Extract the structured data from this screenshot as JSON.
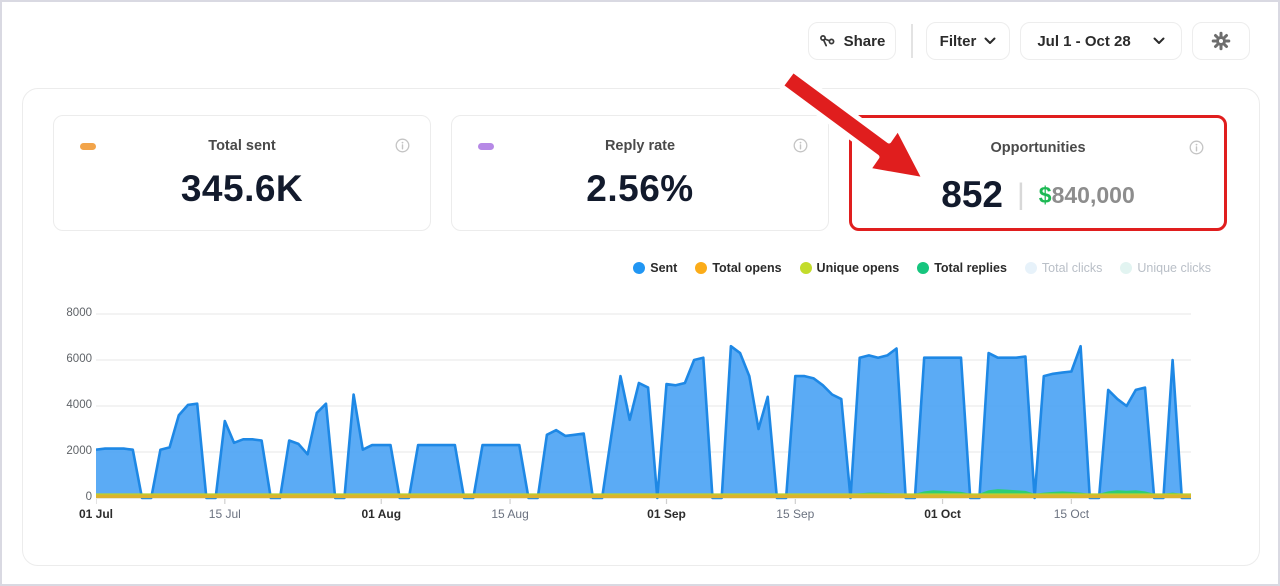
{
  "toolbar": {
    "share_label": "Share",
    "filter_label": "Filter",
    "date_range": "Jul 1 - Oct 28"
  },
  "stats": [
    {
      "title": "Total sent",
      "value": "345.6K",
      "dot_color": "#f2a44a"
    },
    {
      "title": "Reply rate",
      "value": "2.56%",
      "dot_color": "#b689e6"
    },
    {
      "title": "Opportunities",
      "count": "852",
      "separator": "|",
      "currency_symbol": "$",
      "amount": "840,000",
      "highlighted": true,
      "highlight_color": "#e01e1e"
    }
  ],
  "legend": [
    {
      "label": "Sent",
      "color": "#2196f3",
      "enabled": true
    },
    {
      "label": "Total opens",
      "color": "#fbac19",
      "enabled": true
    },
    {
      "label": "Unique opens",
      "color": "#c3dc2b",
      "enabled": true
    },
    {
      "label": "Total replies",
      "color": "#16c57e",
      "enabled": true
    },
    {
      "label": "Total clicks",
      "color": "#e7f2fa",
      "enabled": false
    },
    {
      "label": "Unique clicks",
      "color": "#e2f4f1",
      "enabled": false
    }
  ],
  "chart_data": {
    "type": "area",
    "ylim": [
      0,
      8000
    ],
    "y_ticks": [
      0,
      2000,
      4000,
      6000,
      8000
    ],
    "x_ticks": [
      {
        "label": "01 Jul",
        "index": 0,
        "bold": true
      },
      {
        "label": "15 Jul",
        "index": 14,
        "bold": false
      },
      {
        "label": "01 Aug",
        "index": 31,
        "bold": true
      },
      {
        "label": "15 Aug",
        "index": 45,
        "bold": false
      },
      {
        "label": "01 Sep",
        "index": 62,
        "bold": true
      },
      {
        "label": "15 Sep",
        "index": 76,
        "bold": false
      },
      {
        "label": "01 Oct",
        "index": 92,
        "bold": true
      },
      {
        "label": "15 Oct",
        "index": 106,
        "bold": false
      }
    ],
    "series": [
      {
        "name": "Sent",
        "fill": "#4da4f4",
        "stroke": "#1e88e5",
        "values": [
          2100,
          2150,
          2150,
          2150,
          2100,
          0,
          0,
          2100,
          2200,
          3600,
          4050,
          4100,
          0,
          0,
          3350,
          2400,
          2550,
          2550,
          2500,
          0,
          0,
          2500,
          2350,
          1900,
          3700,
          4100,
          0,
          0,
          4500,
          2100,
          2300,
          2300,
          2300,
          0,
          0,
          2300,
          2300,
          2300,
          2300,
          2300,
          0,
          0,
          2300,
          2300,
          2300,
          2300,
          2300,
          0,
          0,
          2750,
          2950,
          2700,
          2750,
          2800,
          0,
          0,
          2700,
          5300,
          3400,
          5000,
          4800,
          0,
          4950,
          4900,
          5000,
          6000,
          6100,
          0,
          0,
          6600,
          6300,
          5300,
          3000,
          4400,
          0,
          0,
          5300,
          5300,
          5200,
          4900,
          4500,
          4300,
          0,
          6100,
          6200,
          6100,
          6200,
          6500,
          0,
          0,
          6100,
          6100,
          6100,
          6100,
          6100,
          0,
          0,
          6300,
          6100,
          6100,
          6100,
          6150,
          0,
          5300,
          5400,
          5450,
          5500,
          6600,
          0,
          0,
          4700,
          4300,
          4000,
          4700,
          4800,
          0,
          0,
          6000,
          0,
          0
        ]
      },
      {
        "name": "Total replies",
        "fill": "#2fce74",
        "stroke": "#1fbe66",
        "values": [
          100,
          100,
          100,
          100,
          100,
          100,
          100,
          100,
          100,
          100,
          100,
          100,
          100,
          100,
          100,
          100,
          100,
          100,
          100,
          100,
          100,
          100,
          100,
          100,
          100,
          100,
          100,
          100,
          100,
          100,
          100,
          100,
          100,
          100,
          100,
          100,
          100,
          100,
          100,
          100,
          100,
          100,
          100,
          100,
          100,
          100,
          100,
          100,
          100,
          100,
          100,
          100,
          100,
          100,
          100,
          100,
          100,
          100,
          100,
          100,
          100,
          100,
          100,
          100,
          100,
          100,
          100,
          100,
          100,
          100,
          100,
          100,
          100,
          100,
          100,
          100,
          100,
          100,
          100,
          100,
          100,
          100,
          100,
          120,
          150,
          150,
          130,
          110,
          100,
          100,
          200,
          250,
          230,
          200,
          180,
          100,
          100,
          250,
          300,
          280,
          250,
          220,
          100,
          150,
          180,
          200,
          180,
          150,
          100,
          100,
          200,
          250,
          230,
          250,
          200,
          100,
          100,
          150,
          100,
          100
        ]
      },
      {
        "name": "Total opens",
        "color": "#dcb22f",
        "constant": 120
      },
      {
        "name": "Unique opens",
        "color": "#bccf2f",
        "constant": 190
      }
    ],
    "grid": true,
    "legend_position": "top-right"
  }
}
